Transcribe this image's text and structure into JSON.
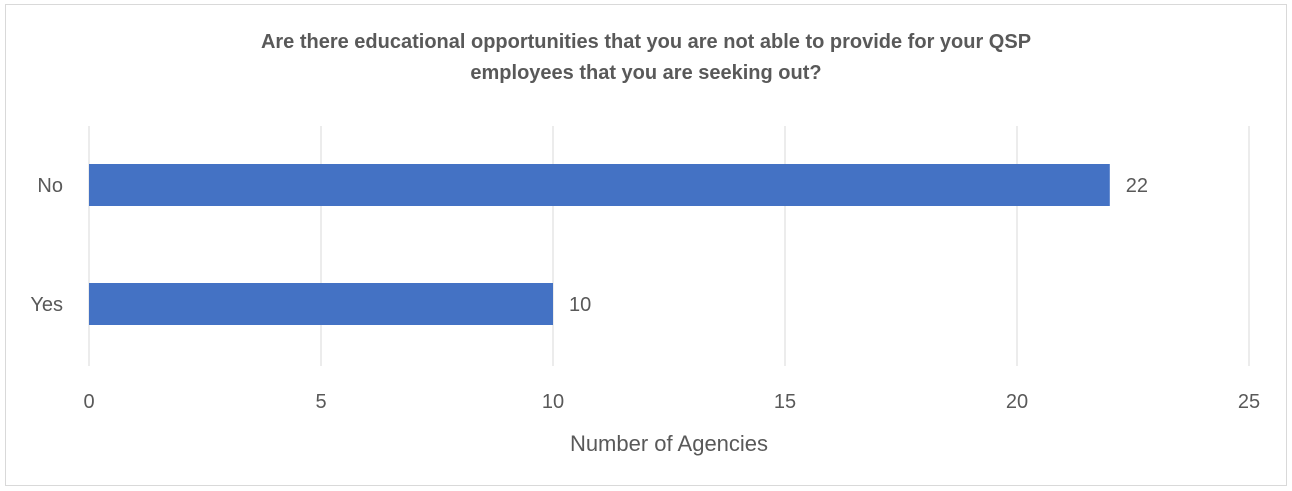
{
  "chart_data": {
    "type": "bar",
    "orientation": "horizontal",
    "title": "Are there educational opportunities that you are not able to provide for your QSP employees that you are seeking out?",
    "title_lines": [
      "Are there educational opportunities that you are not able to provide for your QSP",
      "employees that you are seeking out?"
    ],
    "categories": [
      "No",
      "Yes"
    ],
    "values": [
      22,
      10
    ],
    "data_labels": [
      "22",
      "10"
    ],
    "xlabel": "Number of Agencies",
    "ylabel": "",
    "xlim": [
      0,
      25
    ],
    "xticks": [
      0,
      5,
      10,
      15,
      20,
      25
    ],
    "xtick_labels": [
      "0",
      "5",
      "10",
      "15",
      "20",
      "25"
    ],
    "grid": "vertical",
    "legend": "none",
    "bar_color": "#4472c4",
    "grid_color": "#d9d9d9"
  }
}
